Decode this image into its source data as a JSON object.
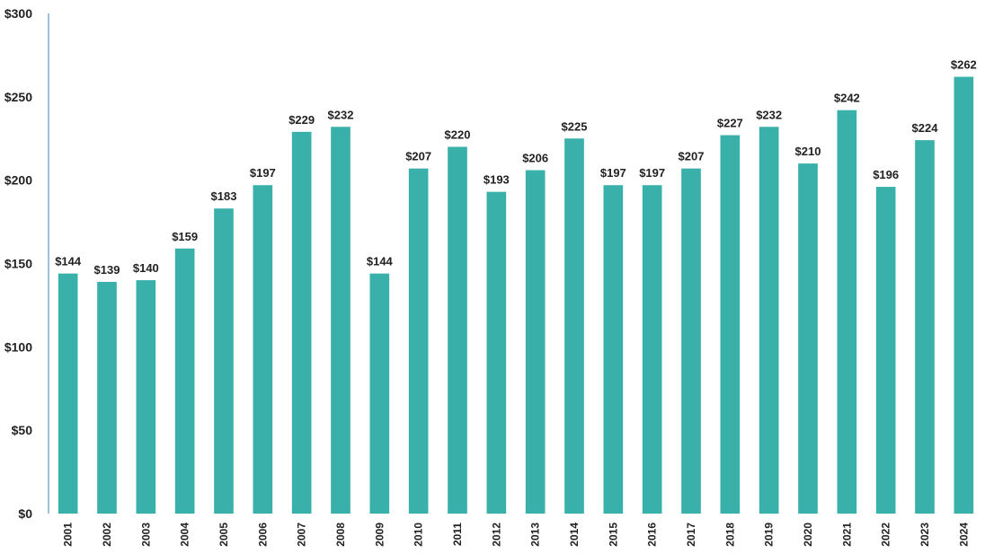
{
  "chart_data": {
    "type": "bar",
    "title": "",
    "xlabel": "",
    "ylabel": "",
    "categories": [
      "2001",
      "2002",
      "2003",
      "2004",
      "2005",
      "2006",
      "2007",
      "2008",
      "2009",
      "2010",
      "2011",
      "2012",
      "2013",
      "2014",
      "2015",
      "2016",
      "2017",
      "2018",
      "2019",
      "2020",
      "2021",
      "2022",
      "2023",
      "2024"
    ],
    "values": [
      144,
      139,
      140,
      159,
      183,
      197,
      229,
      232,
      144,
      207,
      220,
      193,
      206,
      225,
      197,
      197,
      207,
      227,
      232,
      210,
      242,
      196,
      224,
      262
    ],
    "data_labels": [
      "$144",
      "$139",
      "$140",
      "$159",
      "$183",
      "$197",
      "$229",
      "$232",
      "$144",
      "$207",
      "$220",
      "$193",
      "$206",
      "$225",
      "$197",
      "$197",
      "$207",
      "$227",
      "$232",
      "$210",
      "$242",
      "$196",
      "$224",
      "$262"
    ],
    "ylim": [
      0,
      300
    ],
    "y_ticks": [
      0,
      50,
      100,
      150,
      200,
      250,
      300
    ],
    "y_tick_labels": [
      "$0",
      "$50",
      "$100",
      "$150",
      "$200",
      "$250",
      "$300"
    ],
    "grid": false,
    "legend": "none",
    "colors": {
      "bar": "#3AB0AA",
      "axis": "#4A7FB5"
    }
  }
}
